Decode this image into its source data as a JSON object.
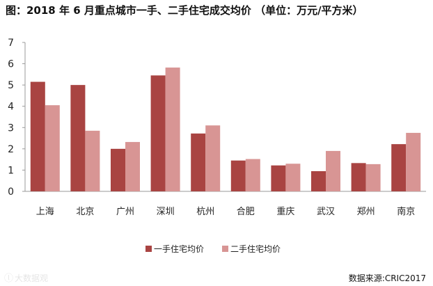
{
  "chart_data": {
    "type": "bar",
    "title": "图：2018 年 6 月重点城市一手、二手住宅成交均价 （单位：万元/平方米）",
    "categories": [
      "上海",
      "北京",
      "广州",
      "深圳",
      "杭州",
      "合肥",
      "重庆",
      "武汉",
      "郑州",
      "南京"
    ],
    "series": [
      {
        "name": "一手住宅均价",
        "color": "#a94442",
        "values": [
          5.15,
          5.0,
          2.0,
          5.45,
          2.72,
          1.45,
          1.22,
          0.95,
          1.33,
          2.22
        ]
      },
      {
        "name": "二手住宅均价",
        "color": "#d89594",
        "values": [
          4.05,
          2.85,
          2.32,
          5.82,
          3.1,
          1.52,
          1.3,
          1.9,
          1.28,
          2.75
        ]
      }
    ],
    "ylim": [
      0,
      7
    ],
    "yticks": [
      "0",
      "1",
      "2",
      "3",
      "4",
      "5",
      "6",
      "7"
    ],
    "grid": false,
    "legend_position": "bottom"
  },
  "source": "数据来源:CRIC2017",
  "watermark": "大数据观"
}
